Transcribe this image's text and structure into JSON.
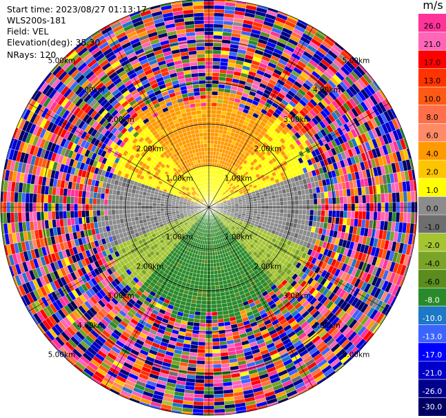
{
  "info": {
    "start_time": "Start time: 2023/08/27 01:13:17",
    "instrument": "WLS200s-181",
    "field": "Field: VEL",
    "elevation": "Elevation(deg): 35.30",
    "nrays": "NRays: 120"
  },
  "chart_data": {
    "type": "heatmap",
    "projection": "polar-ppi",
    "field": "VEL",
    "n_rays": 120,
    "range_max_km": 5.0,
    "range_rings_km": [
      1,
      2,
      3,
      4,
      5
    ],
    "ring_labels": [
      "1.00km",
      "2.00km",
      "3.00km",
      "4.00km",
      "5.00km"
    ],
    "colorbar": {
      "unit": "m/s",
      "vmin": -30.0,
      "vmax": 30.0,
      "tick_labels": [
        "26.0",
        "21.0",
        "17.0",
        "13.0",
        "10.0",
        "8.0",
        "6.0",
        "4.0",
        "2.0",
        "1.0",
        "0.0",
        "-1.0",
        "-2.0",
        "-4.0",
        "-6.0",
        "-8.0",
        "-10.0",
        "-13.0",
        "-17.0",
        "-21.0",
        "-26.0",
        "-30.0"
      ],
      "bins": [
        {
          "min": 26,
          "max": 30,
          "color": "#ff3399"
        },
        {
          "min": 21,
          "max": 26,
          "color": "#ff66b8"
        },
        {
          "min": 17,
          "max": 21,
          "color": "#ff0000"
        },
        {
          "min": 13,
          "max": 17,
          "color": "#ff3300"
        },
        {
          "min": 10,
          "max": 13,
          "color": "#ff5a14"
        },
        {
          "min": 8,
          "max": 10,
          "color": "#ff6f4a"
        },
        {
          "min": 6,
          "max": 8,
          "color": "#ff8a66"
        },
        {
          "min": 4,
          "max": 6,
          "color": "#ff9a00"
        },
        {
          "min": 2,
          "max": 4,
          "color": "#ffc400"
        },
        {
          "min": 1,
          "max": 2,
          "color": "#ffff00"
        },
        {
          "min": 0,
          "max": 1,
          "color": "#8c8c8c"
        },
        {
          "min": -1,
          "max": 0,
          "color": "#6e6e6e"
        },
        {
          "min": -2,
          "max": -1,
          "color": "#a4c432"
        },
        {
          "min": -4,
          "max": -2,
          "color": "#7aa428"
        },
        {
          "min": -6,
          "max": -4,
          "color": "#5a8c1e"
        },
        {
          "min": -8,
          "max": -6,
          "color": "#2a8a2a"
        },
        {
          "min": -10,
          "max": -8,
          "color": "#1e78c8"
        },
        {
          "min": -13,
          "max": -10,
          "color": "#3c64ff"
        },
        {
          "min": -17,
          "max": -13,
          "color": "#0000ff"
        },
        {
          "min": -21,
          "max": -17,
          "color": "#0000c8"
        },
        {
          "min": -26,
          "max": -21,
          "color": "#00008c"
        },
        {
          "min": -30,
          "max": -26,
          "color": "#000064"
        }
      ]
    },
    "velocity_pattern": [
      {
        "sector": "north",
        "range_km": [
          0,
          2.7
        ],
        "band": "4.0 to 6.0"
      },
      {
        "sector": "north-inner",
        "range_km": [
          0,
          1.0
        ],
        "band": "1.0 to 2.0"
      },
      {
        "sector": "northeast/northwest mid",
        "range_km": [
          1.0,
          2.4
        ],
        "band": "1.0 to 2.0"
      },
      {
        "sector": "east/west",
        "range_km": [
          0,
          2.9
        ],
        "band": "0.0 to 1.0"
      },
      {
        "sector": "southeast/southwest",
        "range_km": [
          0,
          2.3
        ],
        "band": "-2.0 to -1.0"
      },
      {
        "sector": "south",
        "range_km": [
          0,
          3.2
        ],
        "band": "-8.0 to -6.0"
      },
      {
        "sector": "all",
        "range_km": [
          3.0,
          5.0
        ],
        "band": "noise (all bins)"
      }
    ]
  }
}
